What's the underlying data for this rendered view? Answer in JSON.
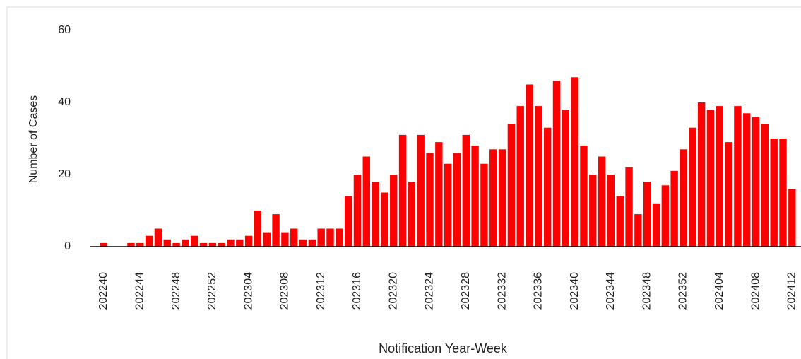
{
  "chart_data": {
    "type": "bar",
    "x_label": "Notification Year-Week",
    "y_label": "Number of Cases",
    "categories": [
      "202240",
      null,
      null,
      null,
      "202244",
      null,
      null,
      null,
      "202248",
      null,
      null,
      null,
      "202252",
      null,
      null,
      null,
      "202304",
      null,
      null,
      null,
      "202308",
      null,
      null,
      null,
      "202312",
      null,
      null,
      null,
      "202316",
      null,
      null,
      null,
      "202320",
      null,
      null,
      null,
      "202324",
      null,
      null,
      null,
      "202328",
      null,
      null,
      null,
      "202332",
      null,
      null,
      null,
      "202336",
      null,
      null,
      null,
      "202340",
      null,
      null,
      null,
      "202344",
      null,
      null,
      null,
      "202348",
      null,
      null,
      null,
      "202352",
      null,
      null,
      null,
      "202404",
      null,
      null,
      null,
      "202408",
      null,
      null,
      null,
      "202412"
    ],
    "values": [
      1,
      0,
      0,
      1,
      1,
      3,
      5,
      2,
      1,
      2,
      3,
      1,
      1,
      1,
      2,
      2,
      3,
      10,
      4,
      9,
      4,
      5,
      2,
      2,
      5,
      5,
      5,
      14,
      20,
      25,
      18,
      15,
      20,
      31,
      18,
      31,
      26,
      29,
      23,
      26,
      31,
      28,
      23,
      27,
      27,
      34,
      39,
      45,
      39,
      33,
      46,
      38,
      47,
      28,
      20,
      25,
      20,
      14,
      22,
      9,
      18,
      12,
      17,
      21,
      27,
      33,
      40,
      38,
      39,
      29,
      39,
      37,
      36,
      34,
      30,
      30,
      16
    ],
    "color": "#ff0000",
    "ylim": [
      0,
      60
    ],
    "yticks": [
      0,
      20,
      40,
      60
    ],
    "grid": false
  }
}
